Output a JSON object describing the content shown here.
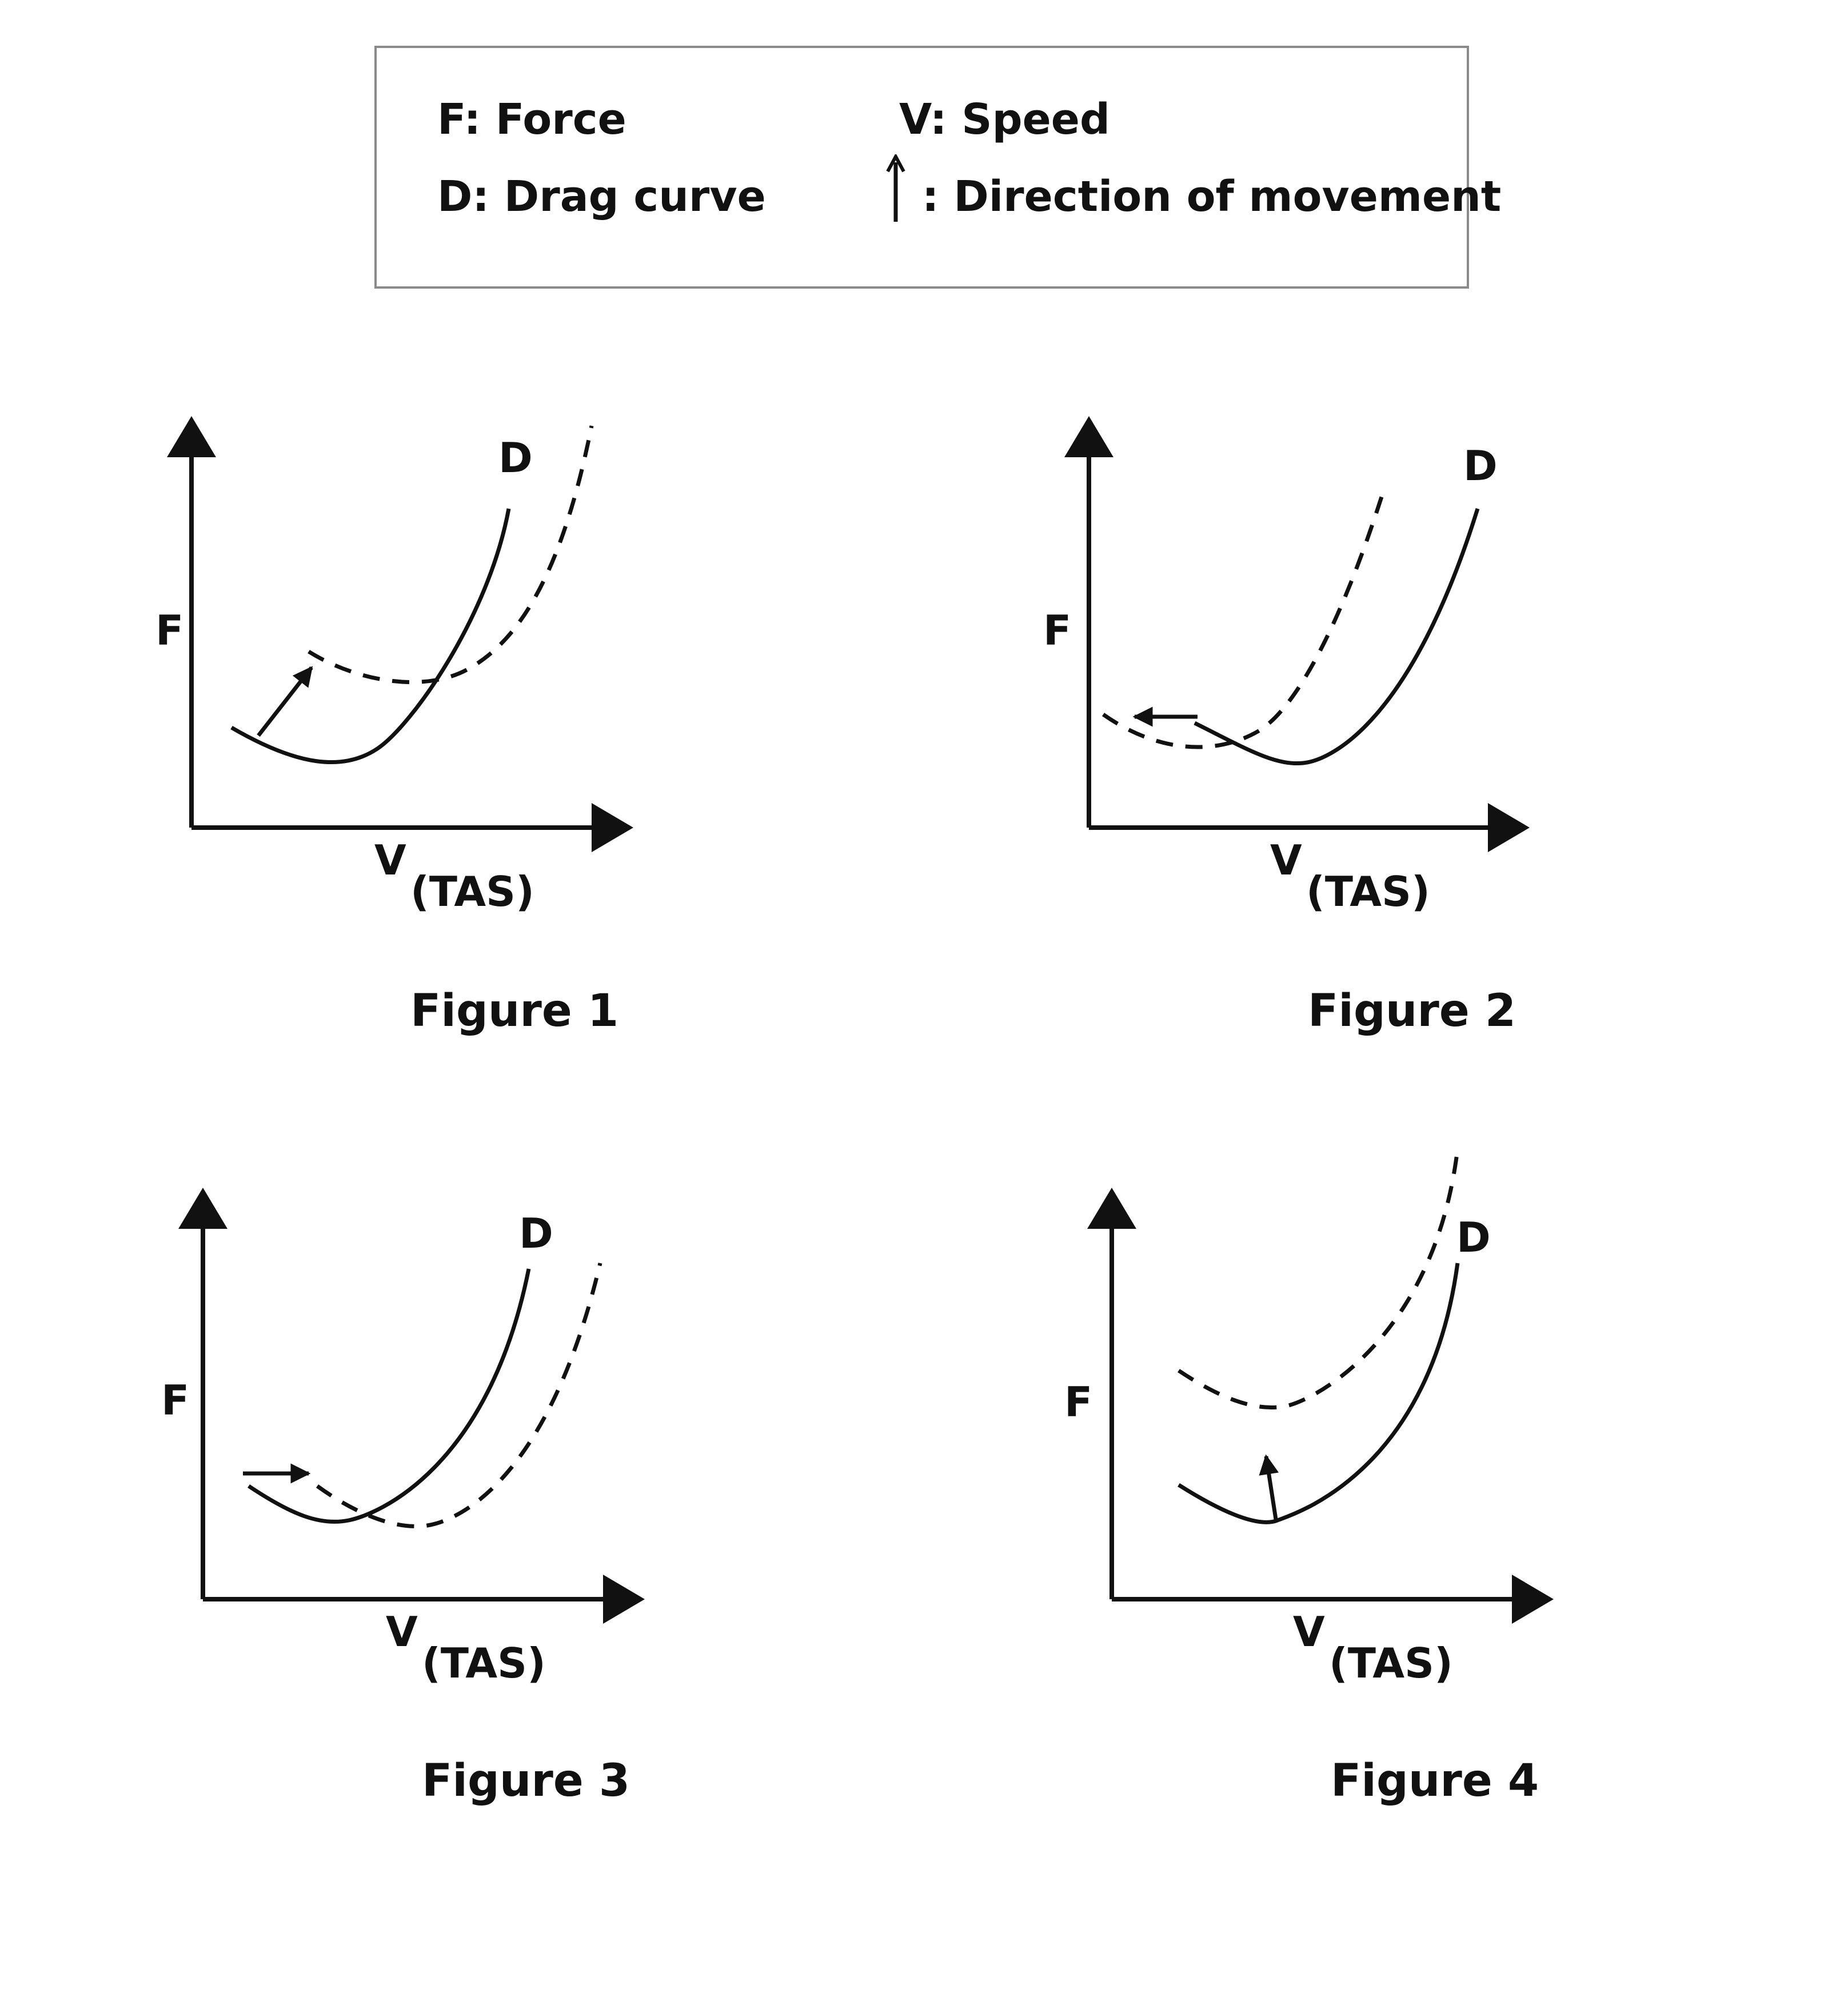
{
  "legend": {
    "force": "F: Force",
    "speed": "V: Speed",
    "drag": "D: Drag curve",
    "direction": ": Direction of movement"
  },
  "axis": {
    "y_label": "F",
    "x_label": "V",
    "x_subscript": "(TAS)",
    "curve_label": "D"
  },
  "figures": [
    {
      "caption": "Figure 1",
      "arrow_direction": "up-right"
    },
    {
      "caption": "Figure 2",
      "arrow_direction": "left"
    },
    {
      "caption": "Figure 3",
      "arrow_direction": "right"
    },
    {
      "caption": "Figure 4",
      "arrow_direction": "up"
    }
  ],
  "colors": {
    "ink": "#111111",
    "legend_border": "#8a8a8a"
  }
}
